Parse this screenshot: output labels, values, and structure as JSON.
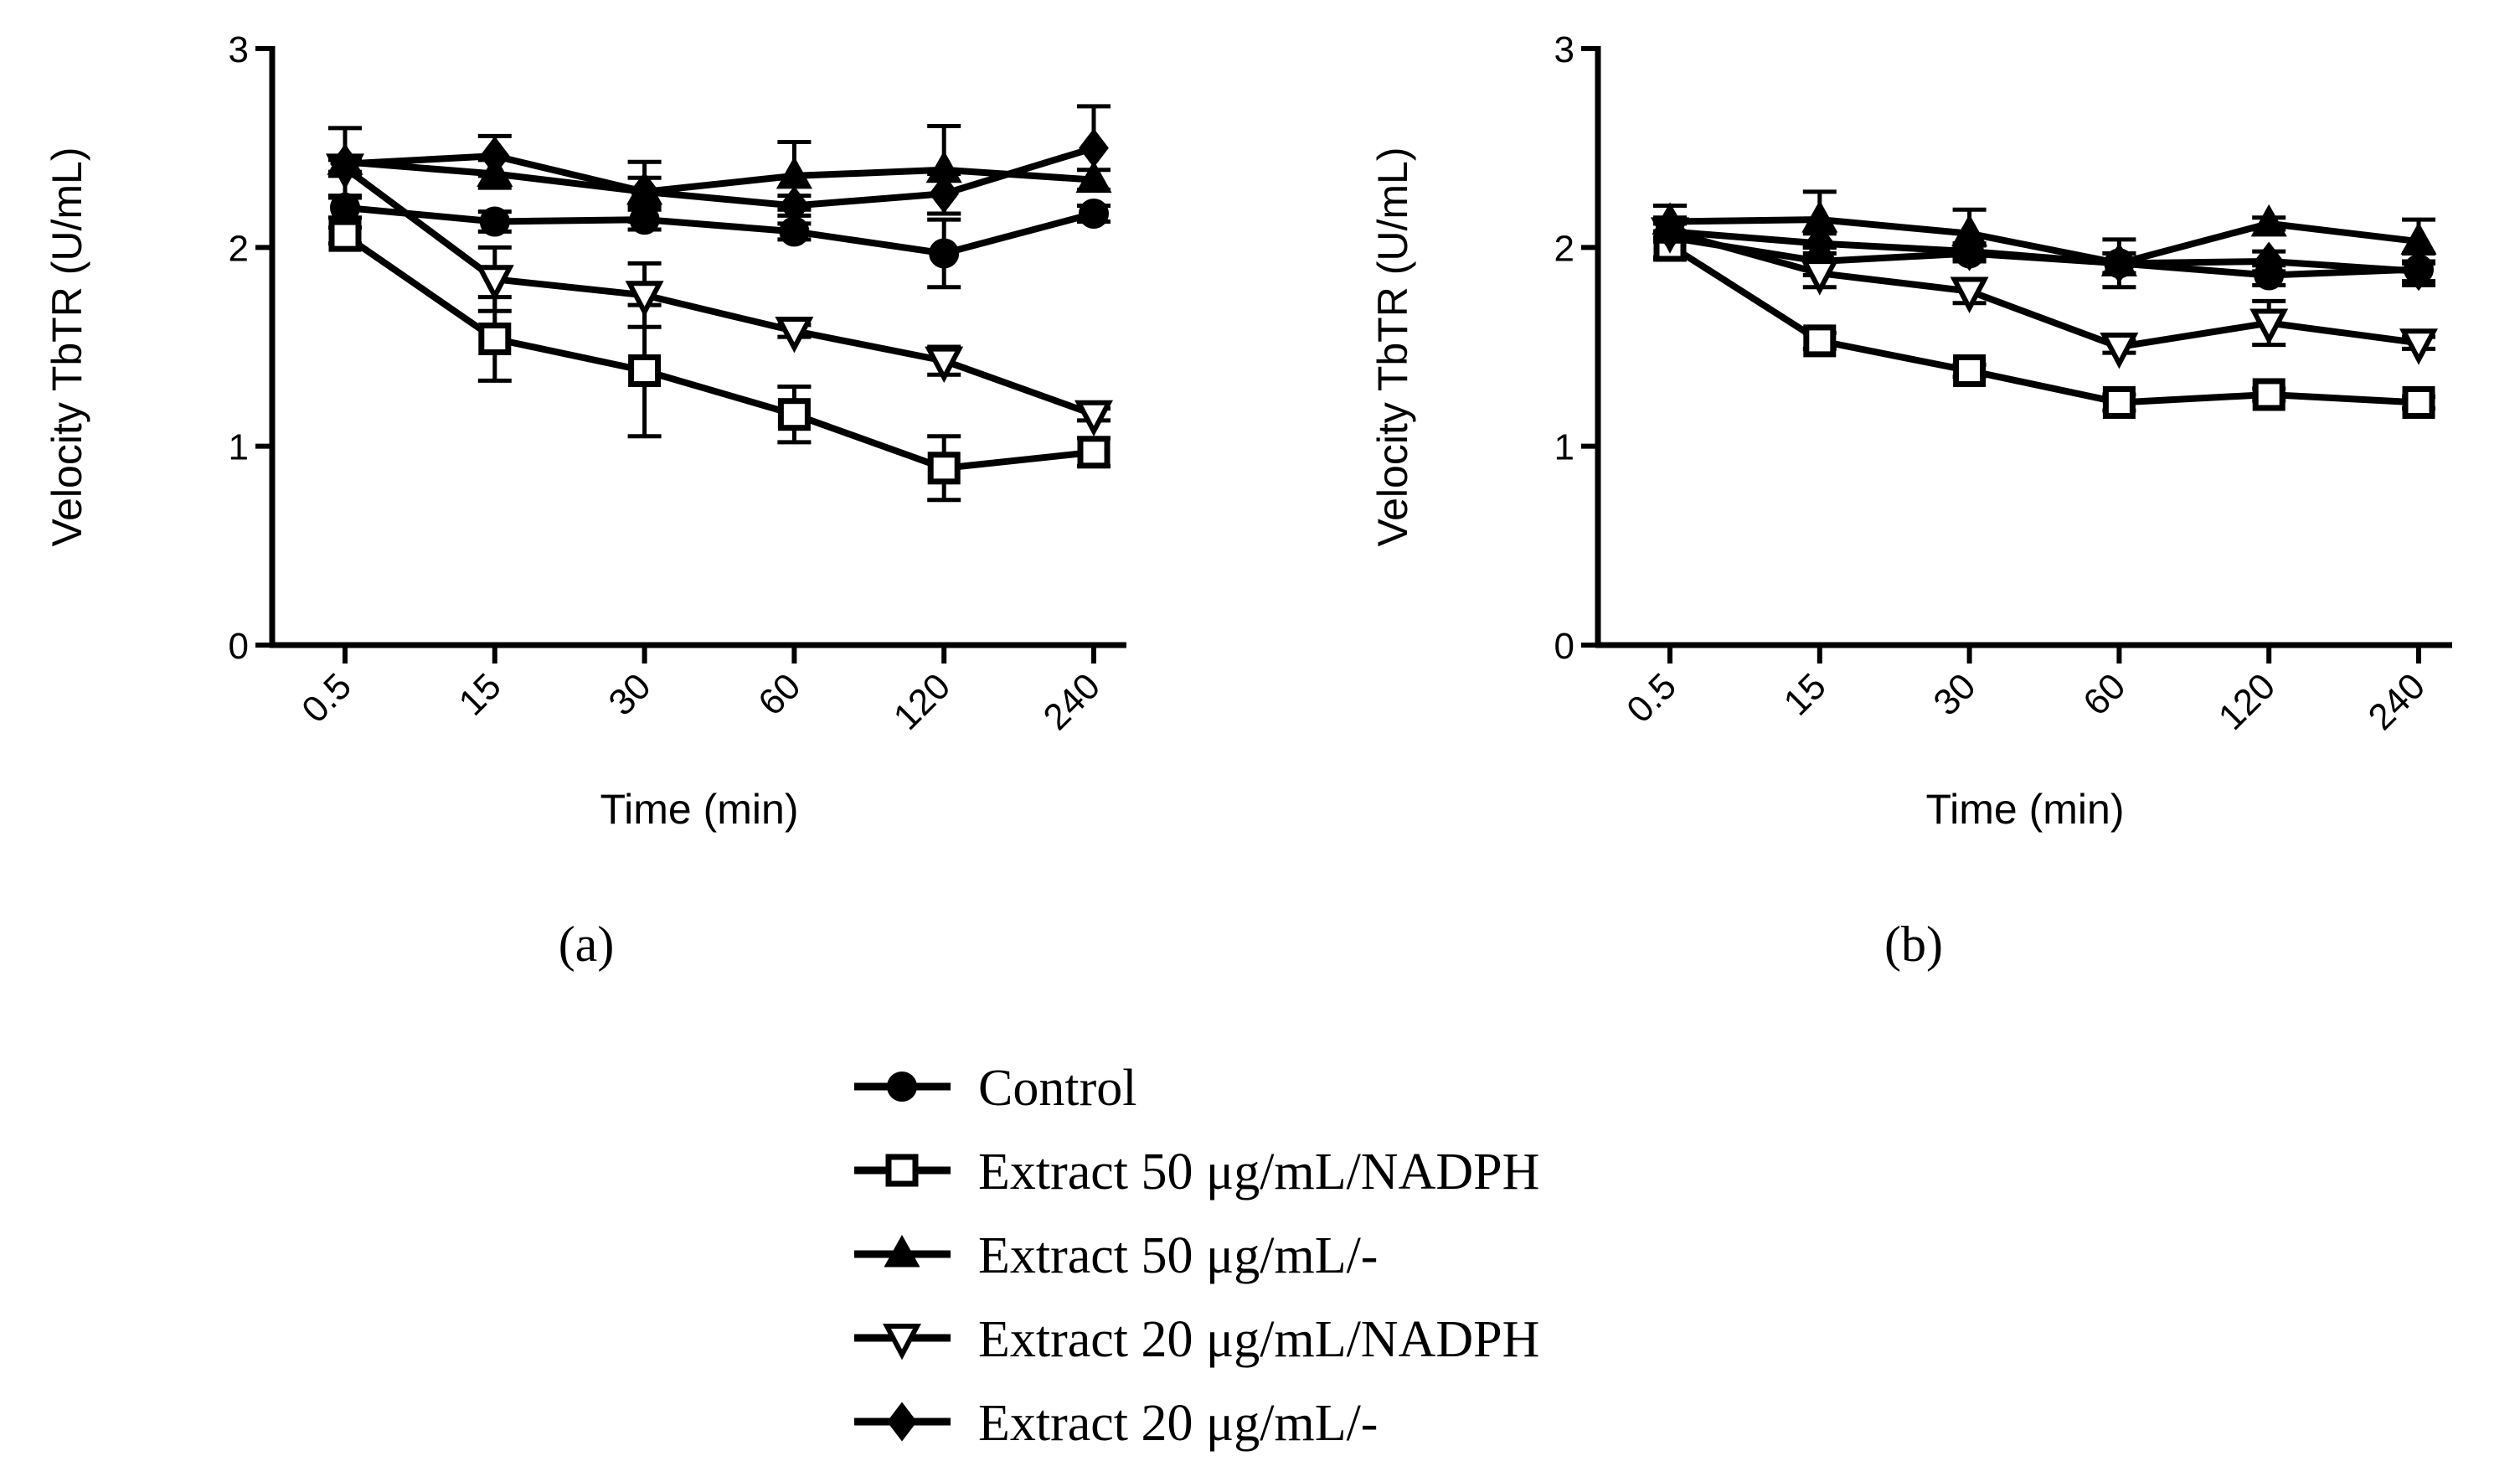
{
  "chart_data": [
    {
      "panel": "a",
      "type": "line",
      "xlabel": "Time (min)",
      "ylabel": "Velocity TbTR (U/mL)",
      "categories": [
        "0.5",
        "15",
        "30",
        "60",
        "120",
        "240"
      ],
      "ylim": [
        0,
        3
      ],
      "yticks": [
        "0",
        "1",
        "2",
        "3"
      ],
      "series": [
        {
          "name": "Control",
          "values": [
            2.2,
            2.13,
            2.14,
            2.08,
            1.97,
            2.17
          ],
          "err": [
            0.05,
            0.05,
            0.05,
            0.04,
            0.17,
            0.04
          ]
        },
        {
          "name": "Extract 50 μg/mL/NADPH",
          "values": [
            2.06,
            1.54,
            1.38,
            1.16,
            0.89,
            0.97
          ],
          "err": [
            0.04,
            0.21,
            0.33,
            0.14,
            0.16,
            0.07
          ]
        },
        {
          "name": "Extract 50 μg/mL/-",
          "values": [
            2.43,
            2.37,
            2.28,
            2.36,
            2.39,
            2.34
          ],
          "err": [
            0.17,
            0.07,
            0.07,
            0.17,
            0.22,
            0.05
          ]
        },
        {
          "name": "Extract 20 μg/mL/NADPH",
          "values": [
            2.4,
            1.84,
            1.76,
            1.58,
            1.43,
            1.16
          ],
          "err": [
            0.04,
            0.16,
            0.16,
            0.03,
            0.07,
            0.03
          ]
        },
        {
          "name": "Extract 20 μg/mL/-",
          "values": [
            2.42,
            2.46,
            2.28,
            2.21,
            2.27,
            2.5
          ],
          "err": [
            0.04,
            0.1,
            0.15,
            0.05,
            0.1,
            0.21
          ]
        }
      ]
    },
    {
      "panel": "b",
      "type": "line",
      "xlabel": "Time (min)",
      "ylabel": "Velocity TbTR (U/mL)",
      "categories": [
        "0.5",
        "15",
        "30",
        "60",
        "120",
        "240"
      ],
      "ylim": [
        0,
        3
      ],
      "yticks": [
        "0",
        "1",
        "2",
        "3"
      ],
      "series": [
        {
          "name": "Control",
          "values": [
            2.05,
            1.93,
            1.97,
            1.92,
            1.86,
            1.89
          ],
          "err": [
            0.1,
            0.07,
            0.04,
            0.12,
            0.05,
            0.08
          ]
        },
        {
          "name": "Extract 50 μg/mL/NADPH",
          "values": [
            2.01,
            1.53,
            1.38,
            1.22,
            1.26,
            1.22
          ],
          "err": [
            0.07,
            0.04,
            0.03,
            0.04,
            0.03,
            0.03
          ]
        },
        {
          "name": "Extract 50 μg/mL/-",
          "values": [
            2.13,
            2.14,
            2.07,
            1.92,
            2.12,
            2.03
          ],
          "err": [
            0.08,
            0.14,
            0.12,
            0.05,
            0.03,
            0.11
          ]
        },
        {
          "name": "Extract 20 μg/mL/NADPH",
          "values": [
            2.08,
            1.87,
            1.78,
            1.5,
            1.62,
            1.52
          ],
          "err": [
            0.05,
            0.07,
            0.06,
            0.03,
            0.11,
            0.03
          ]
        },
        {
          "name": "Extract 20 μg/mL/-",
          "values": [
            2.08,
            2.02,
            1.98,
            1.92,
            1.93,
            1.88
          ],
          "err": [
            0.04,
            0.05,
            0.04,
            0.05,
            0.05,
            0.05
          ]
        }
      ]
    }
  ],
  "panel_labels": [
    "(a)",
    "(b)"
  ],
  "legend": {
    "items": [
      {
        "label": "Control",
        "marker": "circle-filled"
      },
      {
        "label": "Extract 50 μg/mL/NADPH",
        "marker": "square-open"
      },
      {
        "label": "Extract 50 μg/mL/-",
        "marker": "triangle-up-filled"
      },
      {
        "label": "Extract 20 μg/mL/NADPH",
        "marker": "triangle-down-open"
      },
      {
        "label": "Extract 20 μg/mL/-",
        "marker": "diamond-filled"
      }
    ]
  }
}
